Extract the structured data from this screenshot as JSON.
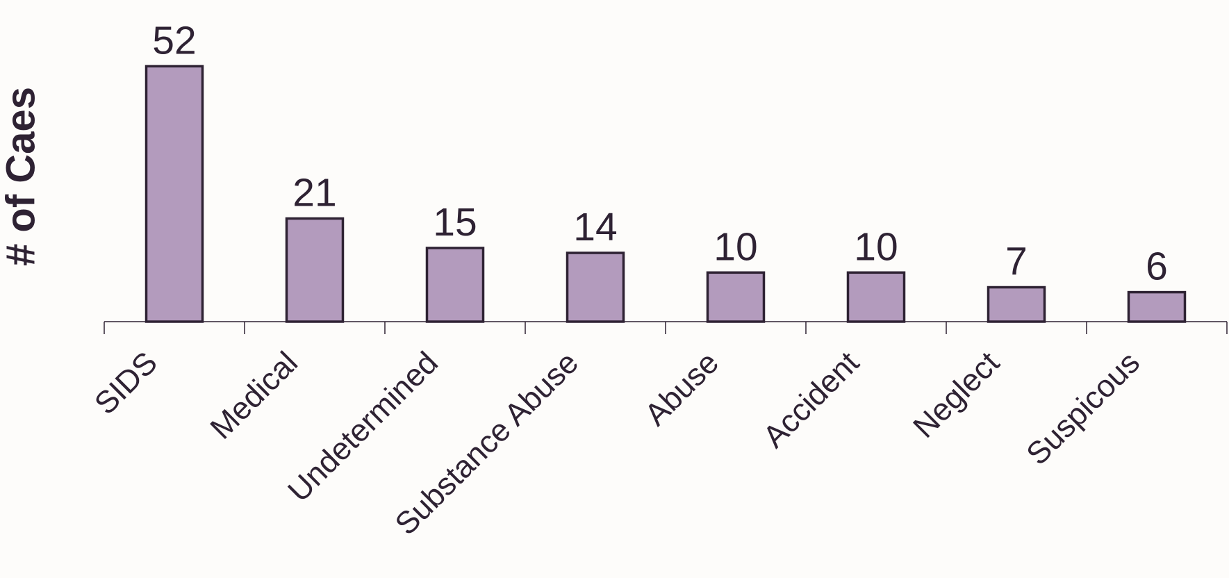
{
  "chart_data": {
    "type": "bar",
    "ylabel": "# of Caes",
    "categories": [
      "SIDS",
      "Medical",
      "Undetermined",
      "Substance Abuse",
      "Abuse",
      "Accident",
      "Neglect",
      "Suspicous"
    ],
    "values": [
      52,
      21,
      15,
      14,
      10,
      10,
      7,
      6
    ],
    "color": "#b39bbd"
  }
}
